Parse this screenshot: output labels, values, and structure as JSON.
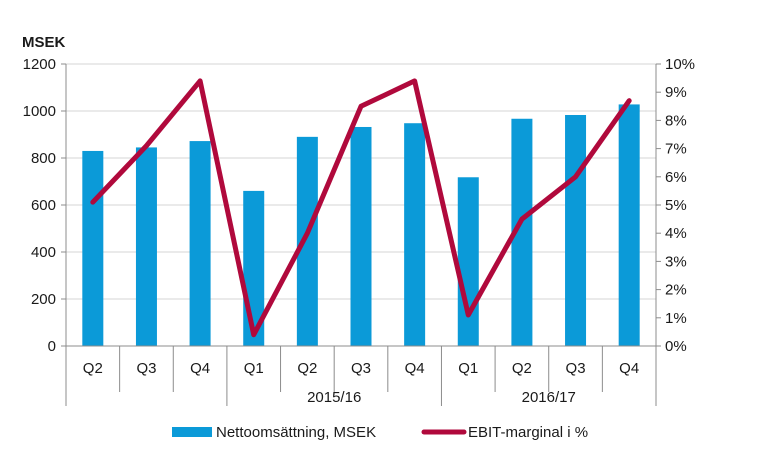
{
  "chart_data": {
    "type": "bar+line",
    "title": "",
    "y_left_unit_label": "MSEK",
    "y_left_lim": [
      0,
      1200
    ],
    "y_left_ticks": [
      "0",
      "200",
      "400",
      "600",
      "800",
      "1000",
      "1200"
    ],
    "y_left_tick_values": [
      0,
      200,
      400,
      600,
      800,
      1000,
      1200
    ],
    "y_right_lim": [
      0,
      10
    ],
    "y_right_ticks": [
      "0%",
      "1%",
      "2%",
      "3%",
      "4%",
      "5%",
      "6%",
      "7%",
      "8%",
      "9%",
      "10%"
    ],
    "y_right_tick_values": [
      0,
      1,
      2,
      3,
      4,
      5,
      6,
      7,
      8,
      9,
      10
    ],
    "categories": [
      "Q2",
      "Q3",
      "Q4",
      "Q1",
      "Q2",
      "Q3",
      "Q4",
      "Q1",
      "Q2",
      "Q3",
      "Q4"
    ],
    "groups": [
      {
        "label": "",
        "start": 0,
        "end": 2
      },
      {
        "label": "2015/16",
        "start": 3,
        "end": 6
      },
      {
        "label": "2016/17",
        "start": 7,
        "end": 10
      }
    ],
    "series": [
      {
        "name": "Nettoomsättning, MSEK",
        "type": "bar",
        "axis": "left",
        "color": "#0b9ad8",
        "values": [
          830,
          845,
          872,
          660,
          890,
          932,
          948,
          718,
          967,
          983,
          1028
        ]
      },
      {
        "name": "EBIT-marginal i %",
        "type": "line",
        "axis": "right",
        "color": "#b0093c",
        "values": [
          5.1,
          7.1,
          9.4,
          0.4,
          4.0,
          8.5,
          9.4,
          1.1,
          4.5,
          6.0,
          8.7
        ]
      }
    ],
    "grid": "horizontal",
    "legend_position": "bottom"
  }
}
